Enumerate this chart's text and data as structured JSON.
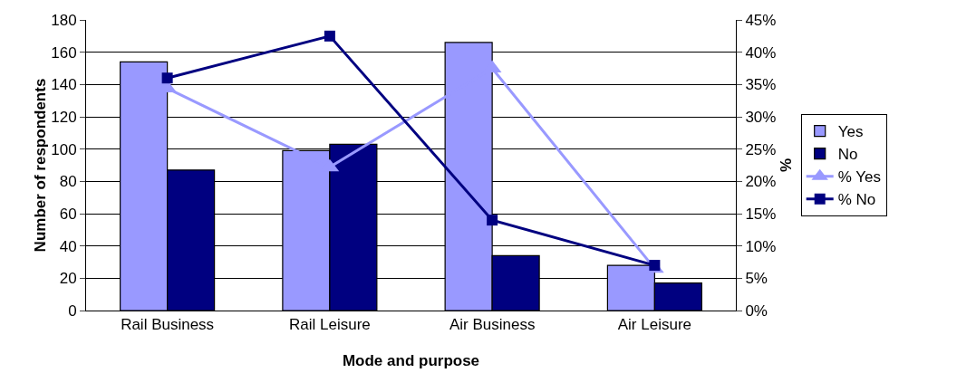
{
  "chart_data": {
    "type": "bar",
    "xlabel": "Mode and purpose",
    "ylabel": "Number of respondents",
    "y2label": "%",
    "categories": [
      "Rail Business",
      "Rail Leisure",
      "Air Business",
      "Air Leisure"
    ],
    "series": [
      {
        "name": "Yes",
        "color": "#9999ff",
        "values": [
          154,
          99,
          166,
          28
        ]
      },
      {
        "name": "No",
        "color": "#000080",
        "values": [
          87,
          103,
          34,
          17
        ]
      },
      {
        "name": "% Yes",
        "type": "line",
        "axis": "y2",
        "marker": "triangle",
        "color": "#9999ff",
        "values": [
          34.4,
          22.2,
          37.5,
          6.5
        ]
      },
      {
        "name": "% No",
        "type": "line",
        "axis": "y2",
        "marker": "square",
        "color": "#000080",
        "values": [
          36,
          42.5,
          14,
          7
        ]
      }
    ],
    "ylim": [
      0,
      180
    ],
    "yticks": [
      0,
      20,
      40,
      60,
      80,
      100,
      120,
      140,
      160,
      180
    ],
    "y2lim": [
      0,
      45
    ],
    "y2ticks": [
      {
        "value": 0,
        "label": "0%"
      },
      {
        "value": 5,
        "label": "5%"
      },
      {
        "value": 10,
        "label": "10%"
      },
      {
        "value": 15,
        "label": "15%"
      },
      {
        "value": 20,
        "label": "20%"
      },
      {
        "value": 25,
        "label": "25%"
      },
      {
        "value": 30,
        "label": "30%"
      },
      {
        "value": 35,
        "label": "35%"
      },
      {
        "value": 40,
        "label": "40%"
      },
      {
        "value": 45,
        "label": "45%"
      }
    ],
    "grid": "y",
    "legend": "right"
  }
}
